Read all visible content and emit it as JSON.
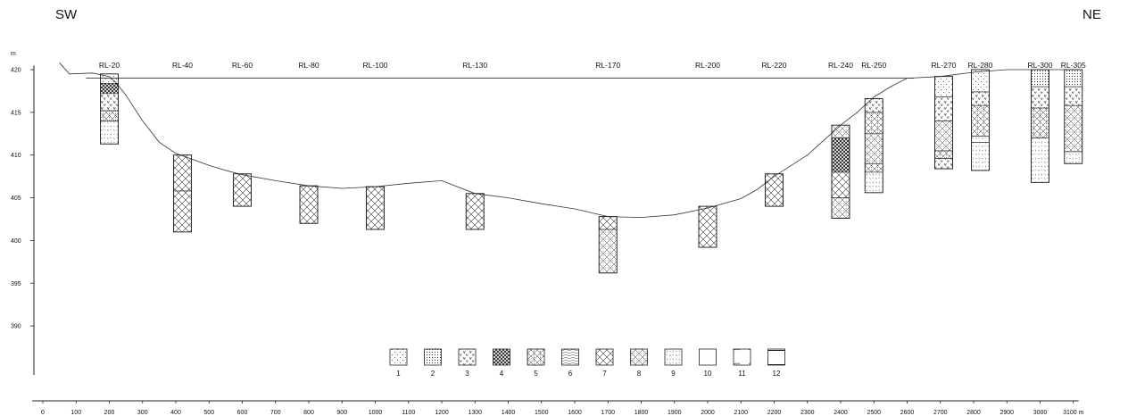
{
  "orientation": {
    "left": "SW",
    "right": "NE"
  },
  "units": {
    "y": "m",
    "x": "m"
  },
  "y_axis": {
    "ticks": [
      420,
      415,
      410,
      405,
      400,
      395,
      390
    ],
    "min": 384,
    "max": 420.5
  },
  "x_axis": {
    "ticks": [
      0,
      100,
      200,
      300,
      400,
      500,
      600,
      700,
      800,
      900,
      1000,
      1100,
      1200,
      1300,
      1400,
      1500,
      1600,
      1700,
      1800,
      1900,
      2000,
      2100,
      2200,
      2300,
      2400,
      2500,
      2600,
      2700,
      2800,
      2900,
      3000,
      3100
    ],
    "last_label": "3100 m"
  },
  "water_level_m": 419,
  "bed_profile": [
    [
      50,
      420.8
    ],
    [
      80,
      419.5
    ],
    [
      150,
      419.6
    ],
    [
      200,
      419.2
    ],
    [
      220,
      418.5
    ],
    [
      250,
      417
    ],
    [
      300,
      414
    ],
    [
      350,
      411.5
    ],
    [
      400,
      410.2
    ],
    [
      450,
      409.5
    ],
    [
      500,
      408.8
    ],
    [
      550,
      408.2
    ],
    [
      600,
      407.7
    ],
    [
      700,
      407
    ],
    [
      800,
      406.4
    ],
    [
      900,
      406.1
    ],
    [
      1000,
      406.3
    ],
    [
      1100,
      406.7
    ],
    [
      1200,
      407
    ],
    [
      1300,
      405.5
    ],
    [
      1400,
      405
    ],
    [
      1500,
      404.3
    ],
    [
      1600,
      403.7
    ],
    [
      1700,
      402.8
    ],
    [
      1800,
      402.7
    ],
    [
      1900,
      403
    ],
    [
      2000,
      403.8
    ],
    [
      2100,
      404.9
    ],
    [
      2150,
      406
    ],
    [
      2200,
      407.5
    ],
    [
      2300,
      410
    ],
    [
      2400,
      413.5
    ],
    [
      2450,
      415
    ],
    [
      2500,
      416.8
    ],
    [
      2550,
      418
    ],
    [
      2600,
      419
    ],
    [
      2700,
      419.2
    ],
    [
      2800,
      419.7
    ],
    [
      2900,
      420
    ],
    [
      3000,
      420
    ],
    [
      3100,
      420
    ]
  ],
  "boreholes": [
    {
      "id": "RL-20",
      "x": 200,
      "top": 419.5,
      "bottom": 411.3,
      "layers": [
        {
          "to": 418.4,
          "p": "p1"
        },
        {
          "to": 417.2,
          "p": "p4"
        },
        {
          "to": 415.2,
          "p": "p3"
        },
        {
          "to": 414,
          "p": "p5"
        },
        {
          "to": 411.3,
          "p": "p9"
        }
      ]
    },
    {
      "id": "RL-40",
      "x": 420,
      "top": 410,
      "bottom": 401,
      "layers": [
        {
          "to": 405.8,
          "p": "p7"
        },
        {
          "to": 401,
          "p": "p7"
        }
      ]
    },
    {
      "id": "RL-60",
      "x": 600,
      "top": 407.8,
      "bottom": 404,
      "layers": [
        {
          "to": 404,
          "p": "p7"
        }
      ]
    },
    {
      "id": "RL-80",
      "x": 800,
      "top": 406.4,
      "bottom": 402,
      "layers": [
        {
          "to": 402,
          "p": "p7"
        }
      ]
    },
    {
      "id": "RL-100",
      "x": 1000,
      "top": 406.3,
      "bottom": 401.3,
      "layers": [
        {
          "to": 401.3,
          "p": "p7"
        }
      ]
    },
    {
      "id": "RL-130",
      "x": 1300,
      "top": 405.5,
      "bottom": 401.3,
      "layers": [
        {
          "to": 401.3,
          "p": "p7"
        }
      ]
    },
    {
      "id": "RL-170",
      "x": 1700,
      "top": 402.8,
      "bottom": 396.2,
      "layers": [
        {
          "to": 401.3,
          "p": "p7"
        },
        {
          "to": 396.2,
          "p": "p8"
        }
      ]
    },
    {
      "id": "RL-200",
      "x": 2000,
      "top": 404,
      "bottom": 399.2,
      "layers": [
        {
          "to": 399.2,
          "p": "p7"
        }
      ]
    },
    {
      "id": "RL-220",
      "x": 2200,
      "top": 407.8,
      "bottom": 404,
      "layers": [
        {
          "to": 404,
          "p": "p7"
        }
      ]
    },
    {
      "id": "RL-240",
      "x": 2400,
      "top": 413.5,
      "bottom": 402.6,
      "layers": [
        {
          "to": 412,
          "p": "p8"
        },
        {
          "to": 408,
          "p": "p4"
        },
        {
          "to": 405,
          "p": "p7"
        },
        {
          "to": 402.6,
          "p": "p8"
        }
      ]
    },
    {
      "id": "RL-250",
      "x": 2500,
      "top": 416.6,
      "bottom": 405.6,
      "layers": [
        {
          "to": 415,
          "p": "p3"
        },
        {
          "to": 412.5,
          "p": "p5"
        },
        {
          "to": 409,
          "p": "p8"
        },
        {
          "to": 408,
          "p": "p5"
        },
        {
          "to": 405.6,
          "p": "p9"
        }
      ]
    },
    {
      "id": "RL-270",
      "x": 2710,
      "top": 419.2,
      "bottom": 408.4,
      "layers": [
        {
          "to": 416.8,
          "p": "p1"
        },
        {
          "to": 414,
          "p": "p3"
        },
        {
          "to": 410.5,
          "p": "p8"
        },
        {
          "to": 409.6,
          "p": "p5"
        },
        {
          "to": 408.4,
          "p": "p3"
        }
      ]
    },
    {
      "id": "RL-280",
      "x": 2820,
      "top": 420,
      "bottom": 408.2,
      "layers": [
        {
          "to": 417.4,
          "p": "p1"
        },
        {
          "to": 415.8,
          "p": "p3"
        },
        {
          "to": 412.2,
          "p": "p5"
        },
        {
          "to": 411.5,
          "p": "p9"
        },
        {
          "to": 408.2,
          "p": "p9"
        }
      ]
    },
    {
      "id": "RL-300",
      "x": 3000,
      "top": 420,
      "bottom": 406.8,
      "layers": [
        {
          "to": 418,
          "p": "p2"
        },
        {
          "to": 415.5,
          "p": "p3"
        },
        {
          "to": 412,
          "p": "p5"
        },
        {
          "to": 406.8,
          "p": "p9"
        }
      ]
    },
    {
      "id": "RL-305",
      "x": 3100,
      "top": 420,
      "bottom": 409,
      "layers": [
        {
          "to": 418,
          "p": "p2"
        },
        {
          "to": 415.8,
          "p": "p3"
        },
        {
          "to": 410.4,
          "p": "p8"
        },
        {
          "to": 409,
          "p": "p9"
        }
      ]
    }
  ],
  "legend": [
    {
      "label": "1",
      "p": "p1"
    },
    {
      "label": "2",
      "p": "p2"
    },
    {
      "label": "3",
      "p": "p3"
    },
    {
      "label": "4",
      "p": "p4"
    },
    {
      "label": "5",
      "p": "p5"
    },
    {
      "label": "6",
      "p": "p6"
    },
    {
      "label": "7",
      "p": "p7"
    },
    {
      "label": "8",
      "p": "p8"
    },
    {
      "label": "9",
      "p": "p9"
    },
    {
      "label": "10",
      "p": "p10"
    },
    {
      "label": "11",
      "p": "p11"
    },
    {
      "label": "12",
      "p": "p12"
    }
  ]
}
